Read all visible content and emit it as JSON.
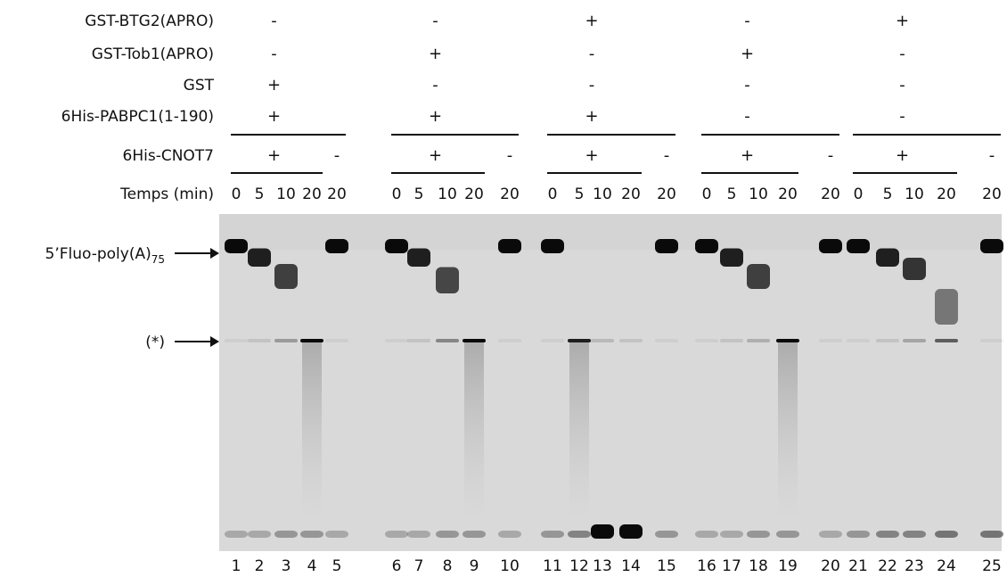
{
  "row_labels": {
    "btg2": "GST-BTG2(APRO)",
    "tob1": "GST-Tob1(APRO)",
    "gst": "GST",
    "pabpc1": "6His-PABPC1(1-190)",
    "cnot7": "6His-CNOT7",
    "time": "Temps (min)"
  },
  "groups": [
    {
      "btg2": "-",
      "tob1": "-",
      "gst": "+",
      "pabpc1": "+",
      "cnot7_with": "+",
      "cnot7_without": "-"
    },
    {
      "btg2": "-",
      "tob1": "+",
      "gst": "-",
      "pabpc1": "+",
      "cnot7_with": "+",
      "cnot7_without": "-"
    },
    {
      "btg2": "+",
      "tob1": "-",
      "gst": "-",
      "pabpc1": "+",
      "cnot7_with": "+",
      "cnot7_without": "-"
    },
    {
      "btg2": "-",
      "tob1": "+",
      "gst": "-",
      "pabpc1": "-",
      "cnot7_with": "+",
      "cnot7_without": "-"
    },
    {
      "btg2": "+",
      "tob1": "-",
      "gst": "-",
      "pabpc1": "-",
      "cnot7_with": "+",
      "cnot7_without": "-"
    }
  ],
  "time_points": [
    "0",
    "5",
    "10",
    "20",
    "20"
  ],
  "band_labels": {
    "substrate": "5’Fluo-poly(A)",
    "substrate_sub": "75",
    "product": "(*)"
  },
  "lane_numbers": [
    "1",
    "2",
    "3",
    "4",
    "5",
    "6",
    "7",
    "8",
    "9",
    "10",
    "11",
    "12",
    "13",
    "14",
    "15",
    "16",
    "17",
    "18",
    "19",
    "20",
    "21",
    "22",
    "23",
    "24",
    "25"
  ],
  "gel": {
    "background": "#d9d9d9",
    "band_color": "#0a0a0a",
    "substrate_band_level": [
      1.0,
      0.85,
      0.6,
      0.0,
      1.0,
      1.0,
      0.85,
      0.55,
      0.0,
      1.0,
      1.0,
      0.0,
      0.0,
      0.0,
      1.0,
      1.0,
      0.85,
      0.6,
      0.0,
      1.0,
      1.0,
      0.85,
      0.7,
      0.2,
      1.0
    ],
    "product_band_level": [
      0.05,
      0.1,
      0.3,
      1.0,
      0.05,
      0.05,
      0.1,
      0.4,
      1.0,
      0.05,
      0.05,
      0.9,
      0.15,
      0.1,
      0.05,
      0.05,
      0.1,
      0.2,
      1.0,
      0.05,
      0.05,
      0.1,
      0.25,
      0.6,
      0.05
    ],
    "bottom_band_level": [
      0.1,
      0.1,
      0.2,
      0.2,
      0.1,
      0.1,
      0.1,
      0.2,
      0.2,
      0.1,
      0.2,
      0.3,
      1.0,
      1.0,
      0.2,
      0.1,
      0.1,
      0.2,
      0.2,
      0.1,
      0.2,
      0.3,
      0.3,
      0.4,
      0.4
    ]
  }
}
